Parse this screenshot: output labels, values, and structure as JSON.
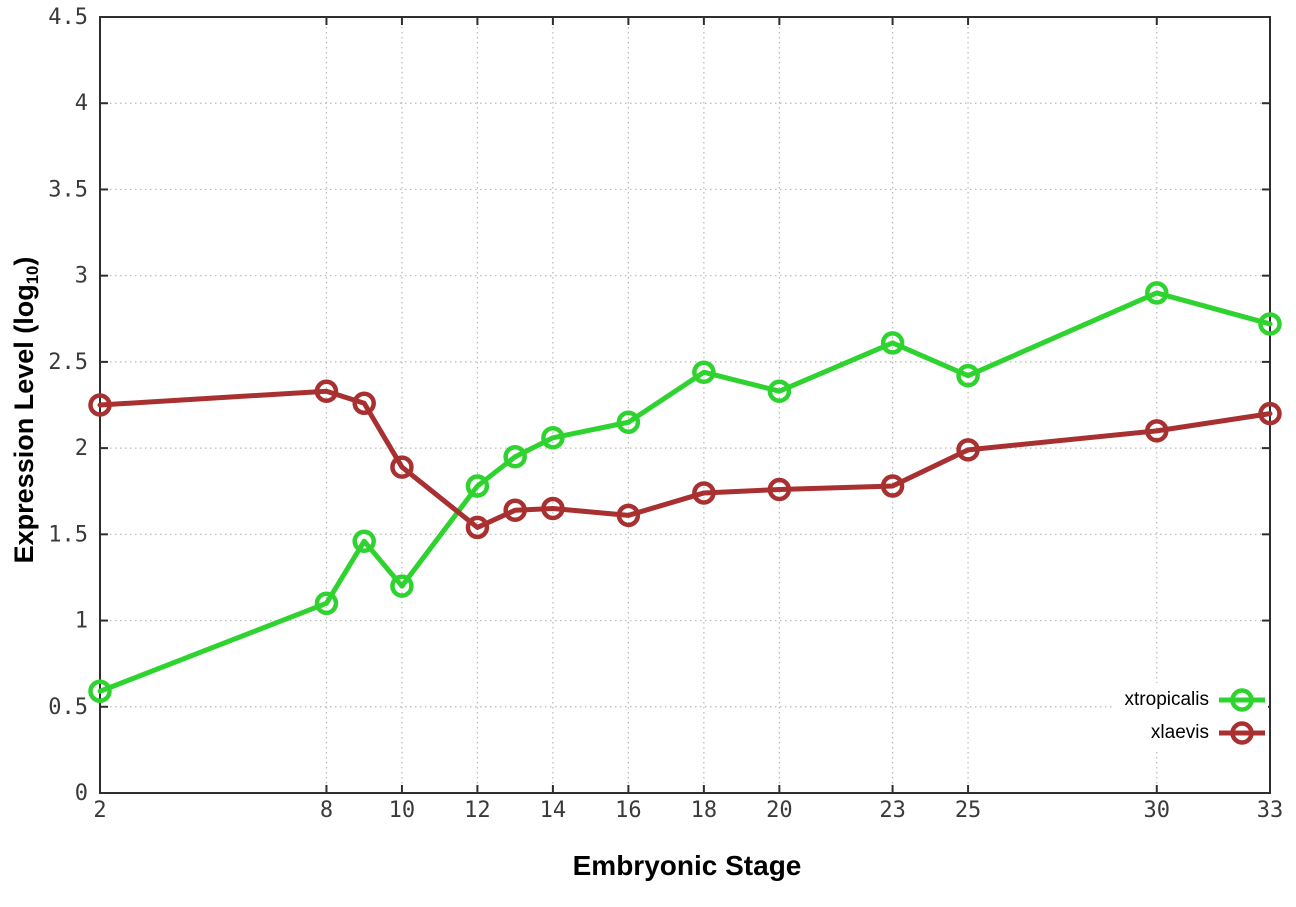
{
  "chart_data": {
    "type": "line",
    "title": "",
    "xlabel": "Embryonic Stage",
    "ylabel_main": "Expression Level (log",
    "ylabel_sub": "10",
    "ylabel_close": ")",
    "x": [
      2,
      8,
      9,
      10,
      12,
      13,
      14,
      16,
      18,
      20,
      23,
      25,
      30,
      33
    ],
    "series": [
      {
        "name": "xtropicalis",
        "color": "#2fd32f",
        "marker": "open-circle",
        "values": [
          0.59,
          1.1,
          1.46,
          1.2,
          1.78,
          1.95,
          2.06,
          2.15,
          2.44,
          2.33,
          2.61,
          2.42,
          2.9,
          2.72
        ]
      },
      {
        "name": "xlaevis",
        "color": "#a93030",
        "marker": "open-circle",
        "values": [
          2.25,
          2.33,
          2.26,
          1.89,
          1.54,
          1.64,
          1.65,
          1.61,
          1.74,
          1.76,
          1.78,
          1.99,
          2.1,
          2.2
        ]
      }
    ],
    "xlim": [
      2,
      33
    ],
    "ylim": [
      0,
      4.5
    ],
    "xticks": {
      "values": [
        2,
        8,
        10,
        12,
        14,
        16,
        18,
        20,
        23,
        25,
        30,
        33
      ],
      "labels": [
        "2",
        "8",
        "10",
        "12",
        "14",
        "16",
        "18",
        "20",
        "23",
        "25",
        "30",
        "33"
      ]
    },
    "yticks": {
      "values": [
        0,
        0.5,
        1,
        1.5,
        2,
        2.5,
        3,
        3.5,
        4,
        4.5
      ],
      "labels": [
        "0",
        "0.5",
        "1",
        "1.5",
        "2",
        "2.5",
        "3",
        "3.5",
        "4",
        "4.5"
      ]
    },
    "grid": true,
    "legend_position": "bottom-right"
  },
  "colors": {
    "background": "#ffffff",
    "border": "#2e2e2e",
    "grid": "#b8b8b8",
    "tick_label": "#3a3a3a"
  }
}
